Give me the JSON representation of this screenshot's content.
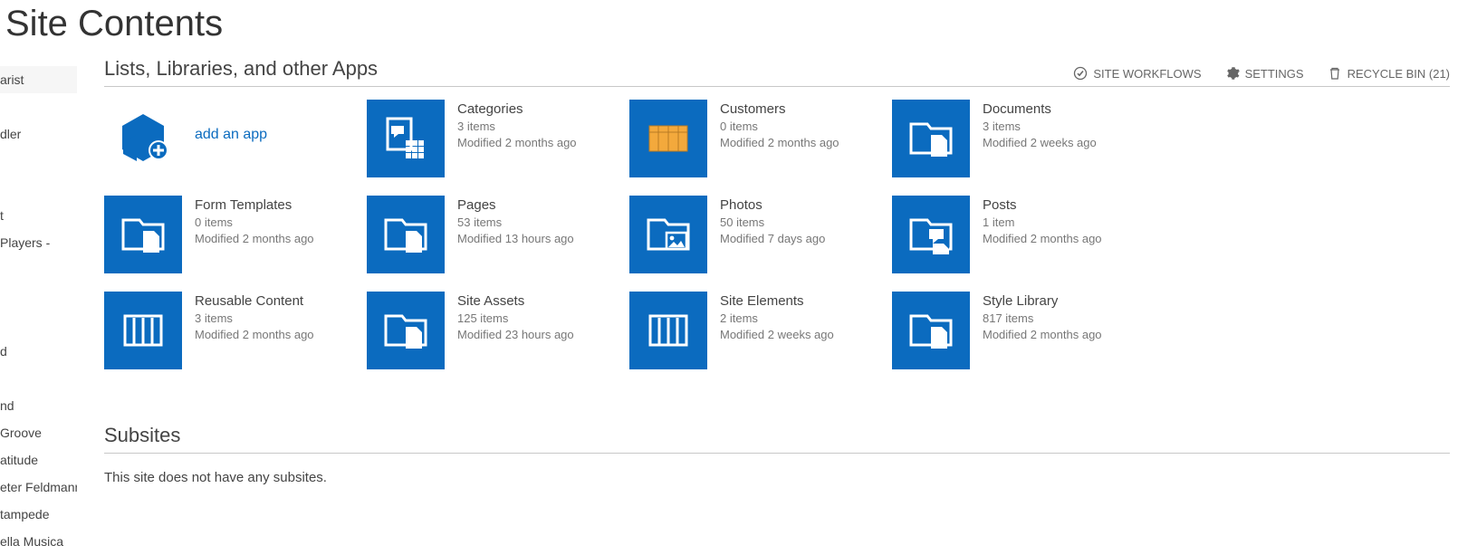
{
  "colors": {
    "tile_bg": "#0b6bbf",
    "accent": "#0b6bbf",
    "text": "#444444",
    "sub_text": "#777777",
    "border": "#c8c8c8",
    "customers_icon_fill": "#f3a93c",
    "customers_icon_border": "#b87b23"
  },
  "page_title": "Site Contents",
  "sidebar": {
    "items": [
      {
        "label": "arist",
        "highlight": true
      },
      {
        "label": ""
      },
      {
        "label": "dler"
      },
      {
        "label": ""
      },
      {
        "label": ""
      },
      {
        "label": "t"
      },
      {
        "label": "Players -"
      },
      {
        "label": ""
      },
      {
        "label": ""
      },
      {
        "label": ""
      },
      {
        "label": "d"
      },
      {
        "label": ""
      },
      {
        "label": "nd"
      },
      {
        "label": "Groove"
      },
      {
        "label": "atitude"
      },
      {
        "label": "eter Feldmann"
      },
      {
        "label": "tampede"
      },
      {
        "label": "ella Musica"
      }
    ]
  },
  "section_title": "Lists, Libraries, and other Apps",
  "actions": {
    "workflows": "SITE WORKFLOWS",
    "settings": "SETTINGS",
    "recycle_label": "RECYCLE BIN",
    "recycle_count": 21
  },
  "add_app": {
    "label": "add an app"
  },
  "apps": [
    {
      "name": "Categories",
      "items": "3 items",
      "modified": "Modified 2 months ago",
      "icon": "discussion"
    },
    {
      "name": "Customers",
      "items": "0 items",
      "modified": "Modified 2 months ago",
      "icon": "customers"
    },
    {
      "name": "Documents",
      "items": "3 items",
      "modified": "Modified 2 weeks ago",
      "icon": "library"
    },
    {
      "name": "Form Templates",
      "items": "0 items",
      "modified": "Modified 2 months ago",
      "icon": "library"
    },
    {
      "name": "Pages",
      "items": "53 items",
      "modified": "Modified 13 hours ago",
      "icon": "library"
    },
    {
      "name": "Photos",
      "items": "50 items",
      "modified": "Modified 7 days ago",
      "icon": "photos"
    },
    {
      "name": "Posts",
      "items": "1 item",
      "modified": "Modified 2 months ago",
      "icon": "posts"
    },
    {
      "name": "Reusable Content",
      "items": "3 items",
      "modified": "Modified 2 months ago",
      "icon": "list"
    },
    {
      "name": "Site Assets",
      "items": "125 items",
      "modified": "Modified 23 hours ago",
      "icon": "library"
    },
    {
      "name": "Site Elements",
      "items": "2 items",
      "modified": "Modified 2 weeks ago",
      "icon": "list"
    },
    {
      "name": "Style Library",
      "items": "817 items",
      "modified": "Modified 2 months ago",
      "icon": "library"
    }
  ],
  "subsites": {
    "title": "Subsites",
    "empty_text": "This site does not have any subsites."
  }
}
